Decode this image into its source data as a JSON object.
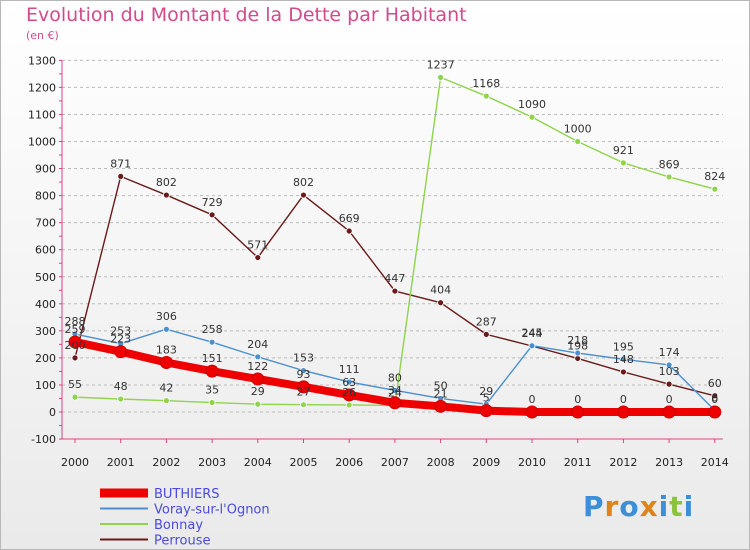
{
  "title": "Evolution du Montant de la Dette par Habitant",
  "subtitle": "(en €)",
  "logo": "Proxiti",
  "chart_data": {
    "type": "line",
    "x": [
      "2000",
      "2001",
      "2002",
      "2003",
      "2004",
      "2005",
      "2006",
      "2007",
      "2008",
      "2009",
      "2010",
      "2011",
      "2012",
      "2013",
      "2014"
    ],
    "ylim": [
      -100,
      1300
    ],
    "yticks": [
      -100,
      0,
      100,
      200,
      300,
      400,
      500,
      600,
      700,
      800,
      900,
      1000,
      1100,
      1200,
      1300
    ],
    "grid": "horizontal dashed",
    "legend_position": "bottom-left",
    "series": [
      {
        "name": "BUTHIERS",
        "color": "#ee0000",
        "values": [
          259,
          223,
          183,
          151,
          122,
          93,
          63,
          34,
          21,
          5,
          0,
          0,
          0,
          0,
          0
        ],
        "labels": [
          "259",
          "223",
          "183",
          "151",
          "122",
          "93",
          "63",
          "34",
          "21",
          "5",
          "0",
          "0",
          "0",
          "0",
          "0"
        ]
      },
      {
        "name": "Voray-sur-l'Ognon",
        "color": "#4a90d0",
        "values": [
          288,
          253,
          306,
          258,
          204,
          153,
          111,
          80,
          50,
          29,
          245,
          218,
          195,
          174,
          6
        ],
        "labels": [
          "288",
          "253",
          "306",
          "258",
          "204",
          "153",
          "111",
          "80",
          "50",
          "29",
          "245",
          "218",
          "195",
          "174",
          "6"
        ]
      },
      {
        "name": "Bonnay",
        "color": "#8fd44a",
        "values": [
          55,
          48,
          42,
          35,
          29,
          27,
          26,
          24,
          1237,
          1168,
          1090,
          1000,
          921,
          869,
          824
        ],
        "labels": [
          "55",
          "48",
          "42",
          "35",
          "29",
          "27",
          "26",
          "24",
          "1237",
          "1168",
          "1090",
          "1000",
          "921",
          "869",
          "824"
        ]
      },
      {
        "name": "Perrouse",
        "color": "#6b1a1a",
        "values": [
          200,
          871,
          802,
          729,
          571,
          802,
          669,
          447,
          404,
          287,
          244,
          198,
          148,
          103,
          60
        ],
        "labels": [
          "200",
          "871",
          "802",
          "729",
          "571",
          "802",
          "669",
          "447",
          "404",
          "287",
          "244",
          "198",
          "148",
          "103",
          "60"
        ]
      }
    ]
  }
}
